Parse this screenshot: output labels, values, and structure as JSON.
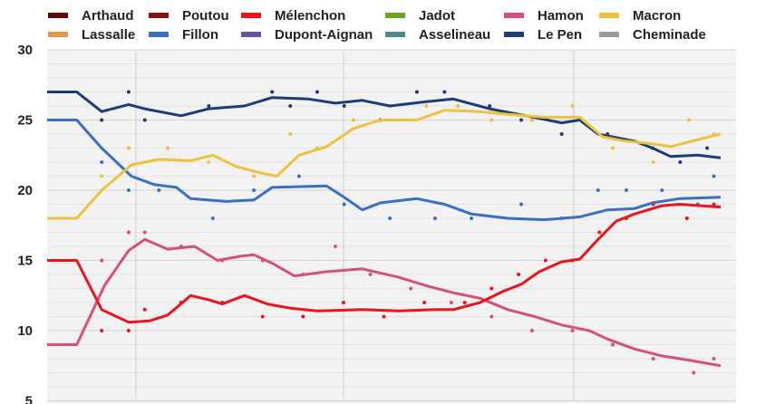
{
  "chart_data": {
    "type": "line",
    "title": "",
    "xlabel": "",
    "ylabel": "",
    "xlim": [
      0,
      100
    ],
    "ylim": [
      5,
      30
    ],
    "yticks": [
      "5",
      "10",
      "15",
      "20",
      "25",
      "30"
    ],
    "grid": true,
    "legend_position": "top",
    "legend": [
      {
        "name": "Arthaud",
        "color": "#5c0a0a"
      },
      {
        "name": "Poutou",
        "color": "#8b1010"
      },
      {
        "name": "Mélenchon",
        "color": "#e8151b"
      },
      {
        "name": "Jadot",
        "color": "#6aa51c"
      },
      {
        "name": "Hamon",
        "color": "#d4507e"
      },
      {
        "name": "Macron",
        "color": "#ecc23e"
      },
      {
        "name": "Lassalle",
        "color": "#e39a45"
      },
      {
        "name": "Fillon",
        "color": "#3a6fc4"
      },
      {
        "name": "Dupont-Aignan",
        "color": "#6a4fa0"
      },
      {
        "name": "Asselineau",
        "color": "#4a8a8a"
      },
      {
        "name": "Le Pen",
        "color": "#1f3c78"
      },
      {
        "name": "Cheminade",
        "color": "#9a9a9a"
      }
    ],
    "series": [
      {
        "name": "Le Pen",
        "color": "#1f3c78",
        "x": [
          0,
          4.4,
          8.1,
          12.1,
          14.5,
          19.9,
          24,
          29.3,
          33.4,
          38.8,
          42.8,
          46.8,
          50.9,
          56.3,
          60.3,
          65.7,
          71.1,
          76.4,
          79.1,
          81.8,
          87.2,
          89.9,
          92.6,
          96.6,
          100
        ],
        "y": [
          27,
          27,
          25.6,
          26.1,
          25.8,
          25.3,
          25.8,
          26,
          26.6,
          26.5,
          26.2,
          26.4,
          26,
          26.3,
          26.5,
          25.8,
          25.3,
          24.8,
          25,
          24,
          23.5,
          23,
          22.4,
          22.5,
          22.3
        ],
        "polls": [
          [
            12.1,
            27
          ],
          [
            8.1,
            25
          ],
          [
            14.5,
            25
          ],
          [
            24,
            26
          ],
          [
            33.4,
            27
          ],
          [
            36.1,
            26
          ],
          [
            40.1,
            27
          ],
          [
            44.1,
            26
          ],
          [
            49.5,
            25
          ],
          [
            54.9,
            27
          ],
          [
            59,
            27
          ],
          [
            65.7,
            26
          ],
          [
            70.4,
            25
          ],
          [
            76.4,
            24
          ],
          [
            83.2,
            24
          ],
          [
            89.9,
            23
          ],
          [
            94,
            22
          ],
          [
            98,
            23
          ]
        ]
      },
      {
        "name": "Fillon",
        "color": "#3a6fc4",
        "x": [
          0,
          4.4,
          8.1,
          12.5,
          15.9,
          19.2,
          21.3,
          26.6,
          30.7,
          33.4,
          41.5,
          44.1,
          46.8,
          49.5,
          54.9,
          59,
          63,
          68.4,
          73.8,
          79.1,
          83.2,
          87.2,
          89.9,
          93.9,
          100
        ],
        "y": [
          25,
          25,
          23,
          21,
          20.4,
          20.2,
          19.4,
          19.2,
          19.3,
          20.2,
          20.3,
          19.5,
          18.6,
          19.1,
          19.4,
          19,
          18.3,
          18,
          17.9,
          18.1,
          18.6,
          18.7,
          19.1,
          19.4,
          19.5
        ],
        "polls": [
          [
            8.1,
            22
          ],
          [
            12.1,
            20
          ],
          [
            16.6,
            20
          ],
          [
            24.6,
            18
          ],
          [
            30.7,
            20
          ],
          [
            37.4,
            21
          ],
          [
            44.1,
            19
          ],
          [
            50.9,
            18
          ],
          [
            57.6,
            18
          ],
          [
            63,
            18
          ],
          [
            70.4,
            19
          ],
          [
            76.4,
            18
          ],
          [
            81.8,
            20
          ],
          [
            86,
            20
          ],
          [
            91.3,
            20
          ],
          [
            96.6,
            19
          ],
          [
            99,
            21
          ]
        ]
      },
      {
        "name": "Macron",
        "color": "#ecc23e",
        "x": [
          0,
          4.4,
          8.1,
          12.5,
          16.6,
          21.3,
          24.6,
          28,
          32,
          34.1,
          37.4,
          41.5,
          45.5,
          49.5,
          54.9,
          59,
          64.3,
          68.4,
          73.8,
          79.1,
          82.5,
          85.9,
          89.9,
          92.6,
          96.6,
          100
        ],
        "y": [
          18,
          18,
          20,
          21.8,
          22.2,
          22.1,
          22.5,
          21.7,
          21.2,
          21,
          22.5,
          23.1,
          24.4,
          25,
          25,
          25.7,
          25.6,
          25.4,
          25.2,
          25.2,
          23.8,
          23.5,
          23.3,
          23.1,
          23.6,
          24
        ],
        "polls": [
          [
            8.1,
            21
          ],
          [
            12.1,
            23
          ],
          [
            17.9,
            23
          ],
          [
            24,
            22
          ],
          [
            30.7,
            21
          ],
          [
            36.1,
            24
          ],
          [
            40.1,
            23
          ],
          [
            45.5,
            25
          ],
          [
            50.9,
            26
          ],
          [
            56.3,
            26
          ],
          [
            61,
            26
          ],
          [
            66,
            25
          ],
          [
            72,
            25
          ],
          [
            78,
            26
          ],
          [
            84,
            23
          ],
          [
            90,
            22
          ],
          [
            95.3,
            25
          ],
          [
            99,
            24
          ]
        ]
      },
      {
        "name": "Hamon",
        "color": "#d4507e",
        "x": [
          0,
          4.4,
          8.5,
          12.1,
          14.5,
          17.9,
          21.9,
          25.3,
          28.7,
          30.7,
          33.4,
          36.7,
          41.5,
          46.8,
          52.2,
          56.3,
          60.3,
          64.3,
          68.4,
          72.4,
          76.4,
          80.5,
          83.2,
          87.2,
          91.3,
          95.3,
          100
        ],
        "y": [
          9,
          9,
          13.2,
          15.7,
          16.5,
          15.8,
          16,
          15,
          15.3,
          15.4,
          14.8,
          13.9,
          14.2,
          14.4,
          13.8,
          13.2,
          12.7,
          12.3,
          11.5,
          11,
          10.4,
          10,
          9.4,
          8.7,
          8.2,
          7.9,
          7.5
        ],
        "polls": [
          [
            8.1,
            15
          ],
          [
            12.1,
            17
          ],
          [
            14.5,
            17
          ],
          [
            19.9,
            16
          ],
          [
            26,
            15
          ],
          [
            32,
            15
          ],
          [
            38,
            14
          ],
          [
            42.8,
            16
          ],
          [
            48,
            14
          ],
          [
            54,
            13
          ],
          [
            60,
            12
          ],
          [
            66,
            11
          ],
          [
            72,
            10
          ],
          [
            78,
            10
          ],
          [
            84,
            9
          ],
          [
            90,
            8
          ],
          [
            96,
            7
          ],
          [
            99,
            8
          ]
        ]
      },
      {
        "name": "Mélenchon",
        "color": "#e8151b",
        "x": [
          0,
          4.4,
          8.1,
          12.1,
          15.2,
          17.9,
          21.3,
          24,
          26,
          29.3,
          32.7,
          36.1,
          40.1,
          46.8,
          52.2,
          57.6,
          60.3,
          64.3,
          67.7,
          70.4,
          73.1,
          76.4,
          79.1,
          81.8,
          84.5,
          87.2,
          91.3,
          93.9,
          100
        ],
        "y": [
          15,
          15,
          11.5,
          10.6,
          10.7,
          11.1,
          12.5,
          12.2,
          11.9,
          12.5,
          11.9,
          11.6,
          11.4,
          11.5,
          11.4,
          11.5,
          11.5,
          12,
          12.8,
          13.3,
          14.2,
          14.9,
          15.1,
          16.5,
          17.8,
          18.3,
          18.9,
          19,
          18.8
        ],
        "polls": [
          [
            8.1,
            10
          ],
          [
            12.1,
            10
          ],
          [
            14.5,
            11.5
          ],
          [
            19.9,
            12
          ],
          [
            26,
            12
          ],
          [
            32,
            11
          ],
          [
            38,
            11
          ],
          [
            44,
            12
          ],
          [
            50,
            11
          ],
          [
            56,
            12
          ],
          [
            62,
            12
          ],
          [
            66,
            13
          ],
          [
            70,
            14
          ],
          [
            74,
            15
          ],
          [
            78,
            15
          ],
          [
            82,
            17
          ],
          [
            86,
            18
          ],
          [
            90,
            19
          ],
          [
            95,
            18
          ],
          [
            99,
            19
          ]
        ]
      }
    ]
  }
}
